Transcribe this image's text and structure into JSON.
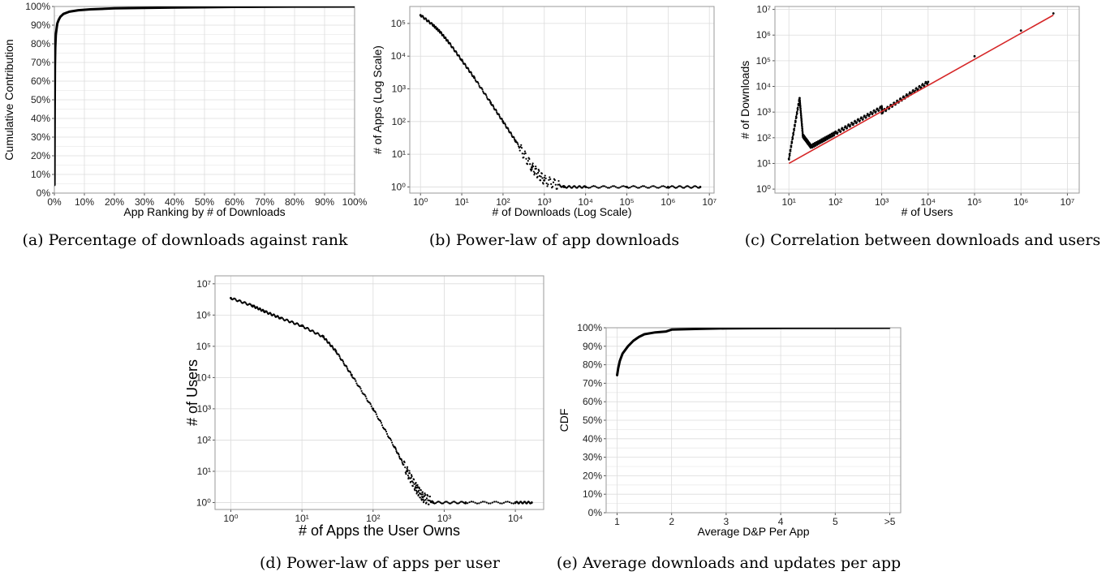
{
  "chart_data": [
    {
      "id": "a",
      "type": "line",
      "caption": "(a) Percentage of downloads against rank",
      "xlabel": "App Ranking by # of Downloads",
      "ylabel": "Cumulative Contribution",
      "xlim": [
        0,
        100
      ],
      "ylim": [
        0,
        100
      ],
      "x_ticks": [
        "0%",
        "10%",
        "20%",
        "30%",
        "40%",
        "50%",
        "60%",
        "70%",
        "80%",
        "90%",
        "100%"
      ],
      "y_ticks": [
        "0%",
        "10%",
        "20%",
        "30%",
        "40%",
        "50%",
        "60%",
        "70%",
        "80%",
        "90%",
        "100%"
      ],
      "grid": true,
      "x": [
        0.02,
        0.05,
        0.1,
        0.2,
        0.3,
        0.5,
        0.8,
        1,
        1.5,
        2,
        3,
        5,
        8,
        12,
        20,
        40,
        60,
        80,
        100
      ],
      "y": [
        4,
        20,
        45,
        68,
        78,
        85,
        89,
        91,
        93,
        94.5,
        96,
        97.2,
        98,
        98.5,
        99,
        99.5,
        99.8,
        99.95,
        100
      ]
    },
    {
      "id": "b",
      "type": "scatter",
      "caption": "(b) Power-law of app downloads",
      "xlabel": "# of Downloads (Log Scale)",
      "ylabel": "# of Apps (Log Scale)",
      "xscale": "log",
      "yscale": "log",
      "xlim": [
        0.55,
        13000000
      ],
      "ylim": [
        0.65,
        330000
      ],
      "x_tick_exponents": [
        0,
        1,
        2,
        3,
        4,
        5,
        6,
        7
      ],
      "y_tick_exponents": [
        0,
        1,
        2,
        3,
        4,
        5
      ],
      "grid": true,
      "points": [
        [
          1,
          180000
        ],
        [
          2,
          90000
        ],
        [
          3,
          55000
        ],
        [
          5,
          25000
        ],
        [
          10,
          7500
        ],
        [
          20,
          2200
        ],
        [
          50,
          380
        ],
        [
          100,
          100
        ],
        [
          200,
          26
        ],
        [
          500,
          4
        ],
        [
          1000,
          1.6
        ],
        [
          3000,
          1
        ],
        [
          10000,
          1
        ],
        [
          100000,
          1
        ],
        [
          1000000,
          1
        ],
        [
          6000000,
          1
        ]
      ]
    },
    {
      "id": "c",
      "type": "scatter",
      "caption": "(c) Correlation between downloads and users",
      "xlabel": "# of Users",
      "ylabel": "# of Downloads",
      "xscale": "log",
      "yscale": "log",
      "xlim": [
        5,
        18000000
      ],
      "ylim": [
        0.7,
        13000000
      ],
      "x_tick_exponents": [
        1,
        2,
        3,
        4,
        5,
        6,
        7
      ],
      "y_tick_exponents": [
        0,
        1,
        2,
        3,
        4,
        5,
        6,
        7
      ],
      "grid": true,
      "points": [
        [
          10,
          15
        ],
        [
          30,
          45
        ],
        [
          100,
          150
        ],
        [
          1000,
          1500
        ],
        [
          10000,
          15000
        ],
        [
          100000,
          150000
        ],
        [
          1000000,
          1500000
        ],
        [
          5000000,
          7000000
        ],
        [
          17,
          3500
        ],
        [
          20,
          120
        ],
        [
          1000,
          1000
        ]
      ],
      "fit_line": {
        "color": "#d62728",
        "x": [
          10,
          5000000
        ],
        "y": [
          10,
          6000000
        ]
      }
    },
    {
      "id": "d",
      "type": "scatter",
      "caption": "(d) Power-law of apps per user",
      "xlabel": "# of Apps the User Owns",
      "ylabel": "# of Users",
      "xscale": "log",
      "yscale": "log",
      "xlim": [
        0.6,
        25000
      ],
      "ylim": [
        0.6,
        18000000
      ],
      "x_tick_exponents": [
        0,
        1,
        2,
        3,
        4
      ],
      "y_tick_exponents": [
        0,
        1,
        2,
        3,
        4,
        5,
        6,
        7
      ],
      "grid": true,
      "points": [
        [
          1,
          3500000
        ],
        [
          2,
          2000000
        ],
        [
          3,
          1300000
        ],
        [
          5,
          800000
        ],
        [
          10,
          450000
        ],
        [
          20,
          200000
        ],
        [
          30,
          70000
        ],
        [
          50,
          12000
        ],
        [
          100,
          1000
        ],
        [
          200,
          60
        ],
        [
          300,
          10
        ],
        [
          400,
          3
        ],
        [
          500,
          1.5
        ],
        [
          700,
          1
        ],
        [
          2000,
          1
        ],
        [
          10000,
          1
        ],
        [
          17000,
          1
        ]
      ]
    },
    {
      "id": "e",
      "type": "line",
      "caption": "(e) Average downloads and updates per app",
      "xlabel": "Average D&P Per App",
      "ylabel": "CDF",
      "xlim": [
        0.8,
        6.2
      ],
      "ylim": [
        0,
        100
      ],
      "x_ticks": [
        "1",
        "2",
        "3",
        "4",
        "5",
        ">5"
      ],
      "y_ticks": [
        "0%",
        "10%",
        "20%",
        "30%",
        "40%",
        "50%",
        "60%",
        "70%",
        "80%",
        "90%",
        "100%"
      ],
      "grid": true,
      "x": [
        1,
        1.02,
        1.05,
        1.1,
        1.2,
        1.3,
        1.4,
        1.5,
        1.7,
        1.9,
        2,
        2.5,
        3,
        4,
        5,
        6
      ],
      "y": [
        74,
        78,
        82,
        86,
        90,
        93,
        95,
        96.5,
        97.5,
        98,
        99,
        99.4,
        99.7,
        99.85,
        99.95,
        100
      ]
    }
  ]
}
